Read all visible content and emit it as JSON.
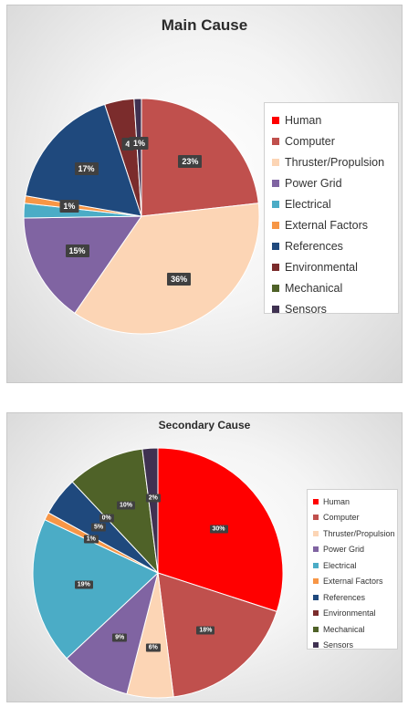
{
  "chart_data": [
    {
      "type": "pie",
      "title": "Main Cause",
      "legend_position": "right",
      "categories": [
        "Human",
        "Computer",
        "Thruster/Propulsion",
        "Power Grid",
        "Electrical",
        "External Factors",
        "References",
        "Environmental",
        "Mechanical",
        "Sensors"
      ],
      "values": [
        0,
        23,
        36,
        15,
        2,
        1,
        17,
        4,
        0,
        1
      ],
      "data_labels": [
        "",
        "23%",
        "36%",
        "15%",
        "",
        "1%",
        "17%",
        "4",
        "",
        "1%"
      ],
      "colors": [
        "#FF0000",
        "#C0504D",
        "#FCD5B5",
        "#8064A2",
        "#4BACC6",
        "#F79646",
        "#1F497D",
        "#7B2C2C",
        "#4F6228",
        "#3F3151"
      ]
    },
    {
      "type": "pie",
      "title": "Secondary Cause",
      "legend_position": "right",
      "categories": [
        "Human",
        "Computer",
        "Thruster/Propulsion",
        "Power Grid",
        "Electrical",
        "External Factors",
        "References",
        "Environmental",
        "Mechanical",
        "Sensors"
      ],
      "values": [
        30,
        18,
        6,
        9,
        19,
        1,
        5,
        0,
        10,
        2
      ],
      "data_labels": [
        "30%",
        "18%",
        "6%",
        "9%",
        "19%",
        "1%",
        "5%",
        "0%",
        "10%",
        "2%"
      ],
      "colors": [
        "#FF0000",
        "#C0504D",
        "#FCD5B5",
        "#8064A2",
        "#4BACC6",
        "#F79646",
        "#1F497D",
        "#7B2C2C",
        "#4F6228",
        "#3F3151"
      ]
    }
  ]
}
